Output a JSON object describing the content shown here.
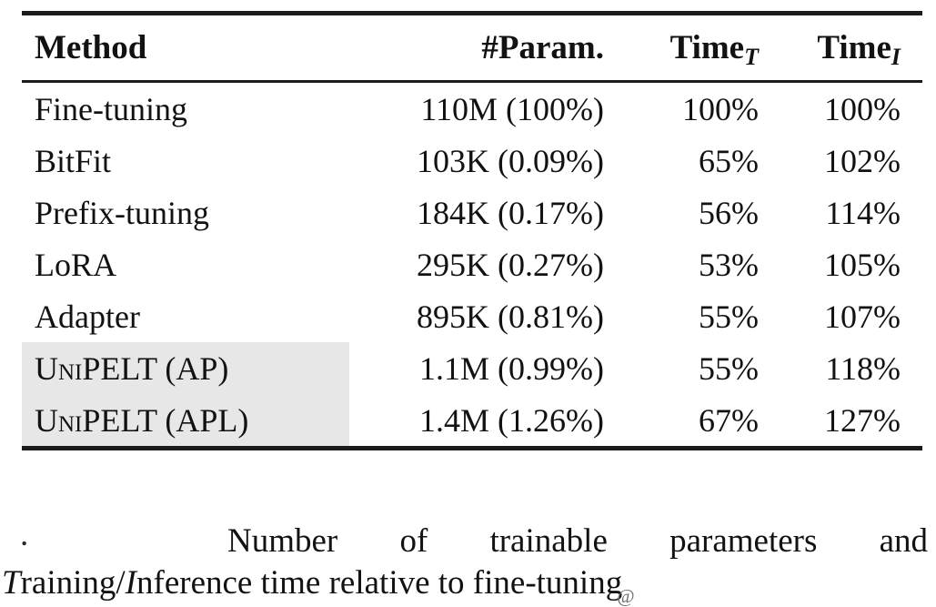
{
  "table": {
    "header": {
      "method": "Method",
      "param": "#Param.",
      "time_t_base": "Time",
      "time_t_sub": "T",
      "time_i_base": "Time",
      "time_i_sub": "I"
    },
    "rows": [
      {
        "method": "Fine-tuning",
        "param": "110M (100%)",
        "time_t": "100%",
        "time_i": "100%"
      },
      {
        "method": "BitFit",
        "param": "103K (0.09%)",
        "time_t": "65%",
        "time_i": "102%"
      },
      {
        "method": "Prefix-tuning",
        "param": "184K (0.17%)",
        "time_t": "56%",
        "time_i": "114%"
      },
      {
        "method": "LoRA",
        "param": "295K (0.27%)",
        "time_t": "53%",
        "time_i": "105%"
      },
      {
        "method": "Adapter",
        "param": "895K (0.81%)",
        "time_t": "55%",
        "time_i": "107%"
      },
      {
        "method": "UniPELT (AP)",
        "param": "1.1M (0.99%)",
        "time_t": "55%",
        "time_i": "118%"
      },
      {
        "method": "UniPELT (APL)",
        "param": "1.4M (1.26%)",
        "time_t": "67%",
        "time_i": "127%"
      }
    ]
  },
  "caption": {
    "stray_dot": ".",
    "line1": "Number of trainable parameters and",
    "line2_t": "T",
    "line2_part1": "raining/",
    "line2_i": "I",
    "line2_part2": "nference time relative to fine-tuning",
    "watermark": "@"
  },
  "colors": {
    "text": "#121212",
    "rule": "#1b1b1b",
    "highlight": "#e7e7e7",
    "background": "#ffffff"
  }
}
